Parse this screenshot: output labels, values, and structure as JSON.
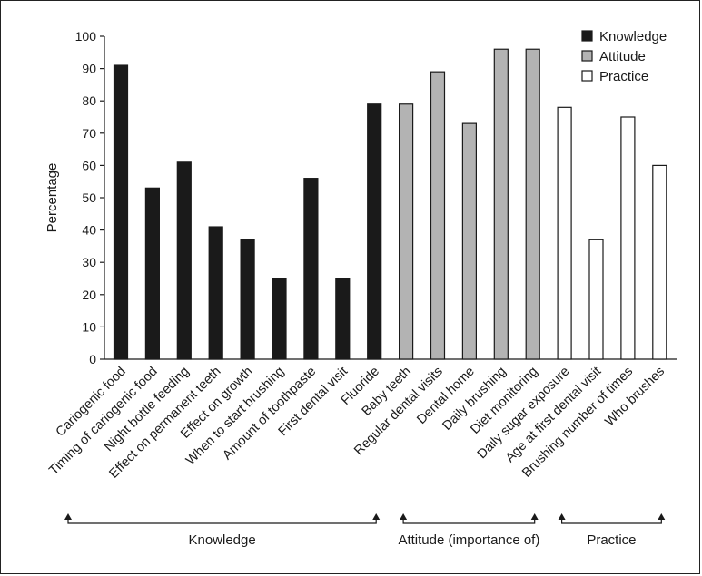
{
  "chart_data": {
    "type": "bar",
    "ylabel": "Percentage",
    "ylim": [
      0,
      100
    ],
    "yticks": [
      0,
      10,
      20,
      30,
      40,
      50,
      60,
      70,
      80,
      90,
      100
    ],
    "grid": false,
    "legend_position": "top-right",
    "categories": [
      "Cariogenic food",
      "Timing of cariogenic food",
      "Night bottle feeding",
      "Effect on permanent teeth",
      "Effect on growth",
      "When to start brushing",
      "Amount of toothpaste",
      "First dental visit",
      "Fluoride",
      "Baby teeth",
      "Regular dental visits",
      "Dental home",
      "Daily brushing",
      "Diet monitoring",
      "Daily sugar exposure",
      "Age at first dental visit",
      "Brushing number of times",
      "Who brushes"
    ],
    "values": [
      91,
      53,
      61,
      41,
      37,
      25,
      56,
      25,
      79,
      79,
      89,
      73,
      96,
      96,
      78,
      37,
      75,
      60
    ],
    "series_of_category": [
      "Knowledge",
      "Knowledge",
      "Knowledge",
      "Knowledge",
      "Knowledge",
      "Knowledge",
      "Knowledge",
      "Knowledge",
      "Knowledge",
      "Attitude",
      "Attitude",
      "Attitude",
      "Attitude",
      "Attitude",
      "Practice",
      "Practice",
      "Practice",
      "Practice"
    ],
    "series": [
      {
        "name": "Knowledge",
        "color": "#1a1a1a"
      },
      {
        "name": "Attitude",
        "color": "#b3b3b3"
      },
      {
        "name": "Practice",
        "color": "#ffffff"
      }
    ],
    "groups": [
      {
        "label": "Knowledge",
        "from": 0,
        "to": 8
      },
      {
        "label": "Attitude (importance of)",
        "from": 9,
        "to": 13
      },
      {
        "label": "Practice",
        "from": 14,
        "to": 17
      }
    ]
  }
}
